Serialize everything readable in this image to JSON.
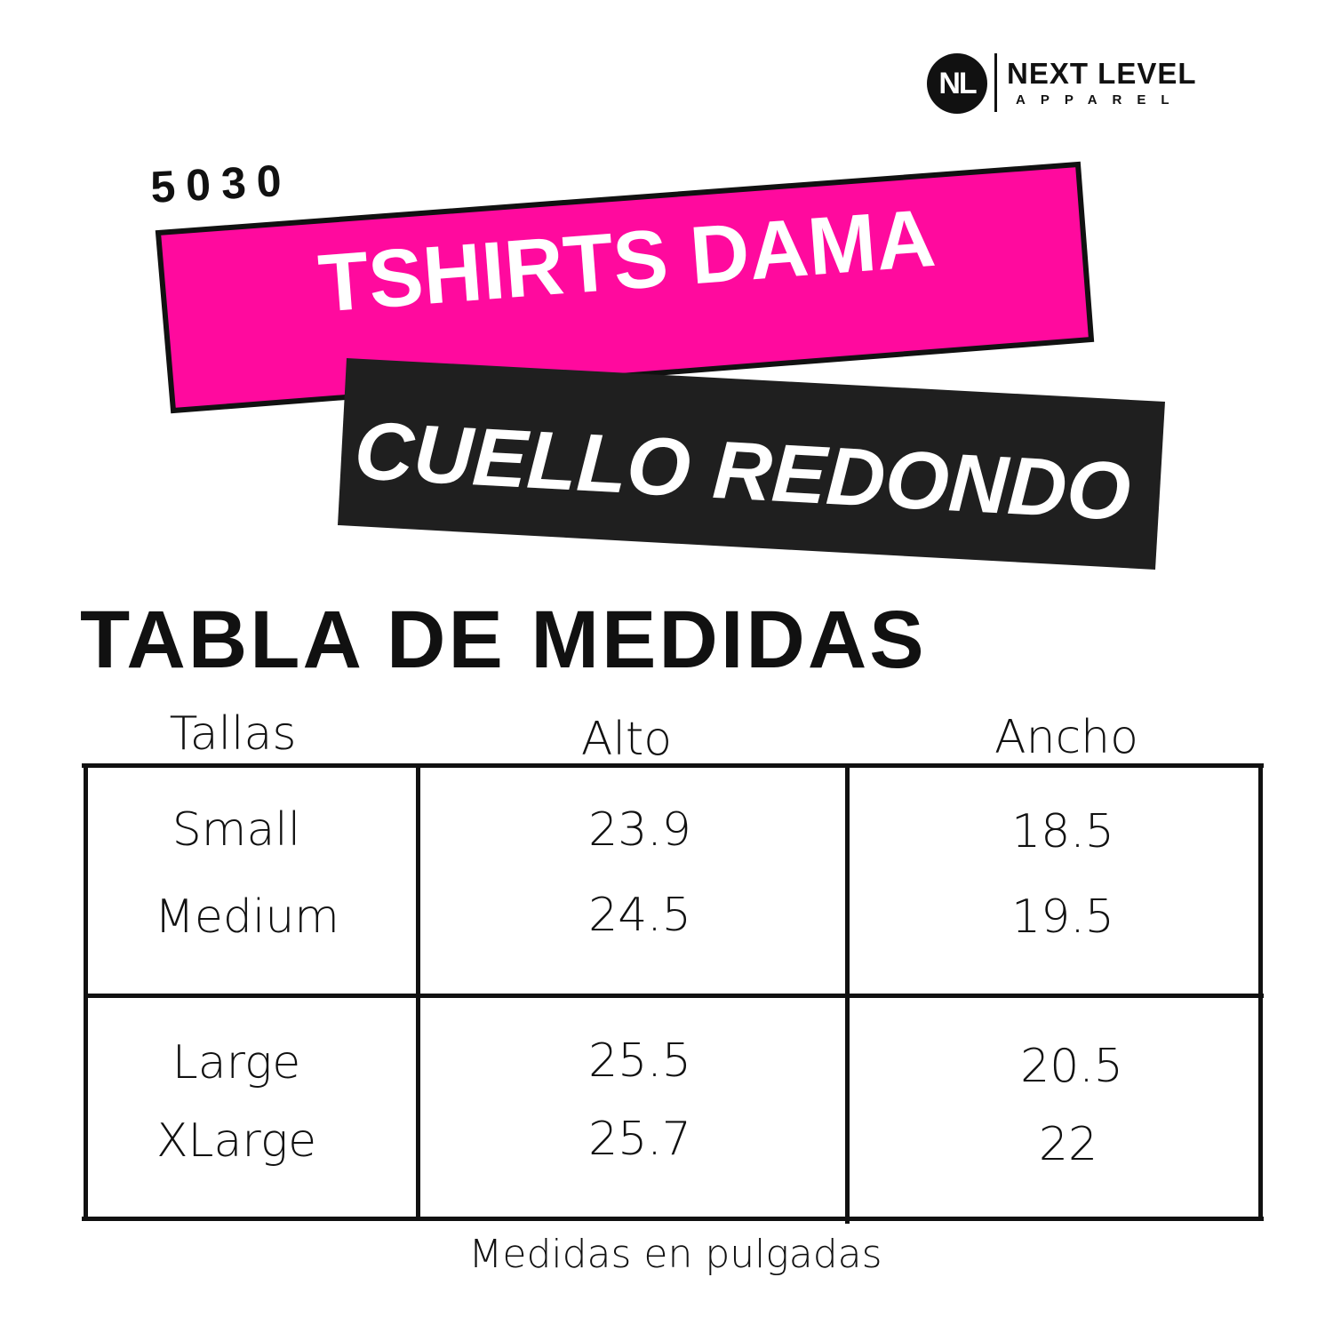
{
  "logo": {
    "mark": "NL",
    "name": "NEXT LEVEL",
    "sub": "APPAREL"
  },
  "product_code": "5030",
  "banner_pink": "TSHIRTS DAMA",
  "banner_black": "CUELLO REDONDO",
  "colors": {
    "pink": "#FF0A9E",
    "black": "#1F1F1F"
  },
  "table": {
    "title": "TABLA DE MEDIDAS",
    "headers": [
      "Tallas",
      "Alto",
      "Ancho"
    ],
    "rows": [
      [
        "Small",
        "23.9",
        "18.5"
      ],
      [
        "Medium",
        "24.5",
        "19.5"
      ],
      [
        "Large",
        "25.5",
        "20.5"
      ],
      [
        "XLarge",
        "25.7",
        "22"
      ]
    ],
    "footnote": "Medidas en pulgadas"
  }
}
